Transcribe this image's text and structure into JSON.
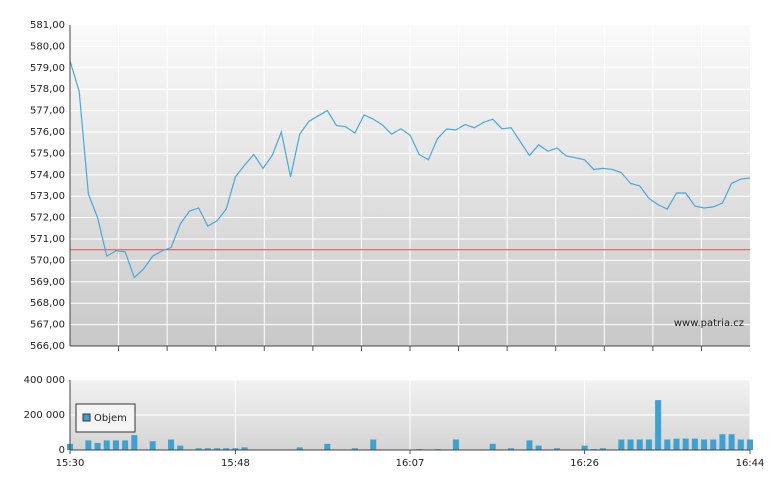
{
  "chart_data": [
    {
      "type": "line",
      "watermark": "www.patria.cz",
      "reference_line": 570.5,
      "reference_color": "#e05050",
      "x": [
        "15:30",
        "15:31",
        "15:32",
        "15:33",
        "15:34",
        "15:35",
        "15:36",
        "15:37",
        "15:38",
        "15:39",
        "15:40",
        "15:41",
        "15:42",
        "15:43",
        "15:44",
        "15:45",
        "15:46",
        "15:47",
        "15:48",
        "15:49",
        "15:50",
        "15:51",
        "15:52",
        "15:53",
        "15:54",
        "15:55",
        "15:56",
        "15:57",
        "15:58",
        "15:59",
        "16:00",
        "16:01",
        "16:02",
        "16:03",
        "16:04",
        "16:05",
        "16:06",
        "16:07",
        "16:08",
        "16:09",
        "16:10",
        "16:11",
        "16:12",
        "16:13",
        "16:14",
        "16:15",
        "16:16",
        "16:17",
        "16:18",
        "16:19",
        "16:20",
        "16:21",
        "16:22",
        "16:23",
        "16:24",
        "16:25",
        "16:26",
        "16:27",
        "16:28",
        "16:29",
        "16:30",
        "16:31",
        "16:32",
        "16:33",
        "16:34",
        "16:35",
        "16:36",
        "16:37",
        "16:38",
        "16:39",
        "16:40",
        "16:41",
        "16:42",
        "16:43",
        "16:44"
      ],
      "xlim": [
        "15:30",
        "16:44"
      ],
      "series": [
        {
          "color": "#4aa8d8",
          "values": [
            579.32,
            577.9,
            573.1,
            572.0,
            570.2,
            570.45,
            570.4,
            569.2,
            569.6,
            570.2,
            570.44,
            570.6,
            571.7,
            572.3,
            572.45,
            571.6,
            571.85,
            572.4,
            573.9,
            574.45,
            574.95,
            574.3,
            574.9,
            576.0,
            573.9,
            575.9,
            576.5,
            576.75,
            577.0,
            576.3,
            576.25,
            575.95,
            576.8,
            576.6,
            576.33,
            575.9,
            576.15,
            575.86,
            574.95,
            574.7,
            575.7,
            576.14,
            576.1,
            576.35,
            576.2,
            576.45,
            576.6,
            576.15,
            576.2,
            575.55,
            574.9,
            575.4,
            575.1,
            575.25,
            574.88,
            574.8,
            574.7,
            574.25,
            574.3,
            574.25,
            574.1,
            573.6,
            573.48,
            572.9,
            572.6,
            572.4,
            573.15,
            573.15,
            572.54,
            572.45,
            572.5,
            572.68,
            573.6,
            573.8,
            573.85
          ]
        }
      ],
      "ylim": [
        566,
        581
      ],
      "yticks": [
        {
          "value": 566,
          "label": "566,00"
        },
        {
          "value": 567,
          "label": "567,00"
        },
        {
          "value": 568,
          "label": "568,00"
        },
        {
          "value": 569,
          "label": "569,00"
        },
        {
          "value": 570,
          "label": "570,00"
        },
        {
          "value": 571,
          "label": "571,00"
        },
        {
          "value": 572,
          "label": "572,00"
        },
        {
          "value": 573,
          "label": "573,00"
        },
        {
          "value": 574,
          "label": "574,00"
        },
        {
          "value": 575,
          "label": "575,00"
        },
        {
          "value": 576,
          "label": "576,00"
        },
        {
          "value": 577,
          "label": "577,00"
        },
        {
          "value": 578,
          "label": "578,00"
        },
        {
          "value": 579,
          "label": "579,00"
        },
        {
          "value": 580,
          "label": "580,00"
        },
        {
          "value": 581,
          "label": "581,00"
        }
      ],
      "grid": true
    },
    {
      "type": "bar",
      "x": [
        "15:30",
        "15:31",
        "15:32",
        "15:33",
        "15:34",
        "15:35",
        "15:36",
        "15:37",
        "15:38",
        "15:39",
        "15:40",
        "15:41",
        "15:42",
        "15:43",
        "15:44",
        "15:45",
        "15:46",
        "15:47",
        "15:48",
        "15:49",
        "15:50",
        "15:51",
        "15:52",
        "15:53",
        "15:54",
        "15:55",
        "15:56",
        "15:57",
        "15:58",
        "15:59",
        "16:00",
        "16:01",
        "16:02",
        "16:03",
        "16:04",
        "16:05",
        "16:06",
        "16:07",
        "16:08",
        "16:09",
        "16:10",
        "16:11",
        "16:12",
        "16:13",
        "16:14",
        "16:15",
        "16:16",
        "16:17",
        "16:18",
        "16:19",
        "16:20",
        "16:21",
        "16:22",
        "16:23",
        "16:24",
        "16:25",
        "16:26",
        "16:27",
        "16:28",
        "16:29",
        "16:30",
        "16:31",
        "16:32",
        "16:33",
        "16:34",
        "16:35",
        "16:36",
        "16:37",
        "16:38",
        "16:39",
        "16:40",
        "16:41",
        "16:42",
        "16:43",
        "16:44"
      ],
      "xlim": [
        "15:30",
        "16:44"
      ],
      "xticks": [
        "15:30",
        "15:48",
        "16:07",
        "16:26",
        "16:44"
      ],
      "series": [
        {
          "name": "Objem",
          "color": "#3fa1d0",
          "values": [
            35000,
            0,
            55000,
            40000,
            55000,
            55000,
            55000,
            85000,
            0,
            50000,
            0,
            60000,
            25000,
            0,
            10000,
            10000,
            10000,
            10000,
            10000,
            15000,
            0,
            0,
            0,
            0,
            0,
            15000,
            0,
            0,
            35000,
            0,
            0,
            10000,
            0,
            60000,
            0,
            0,
            0,
            0,
            5000,
            0,
            5000,
            0,
            60000,
            0,
            0,
            0,
            35000,
            0,
            10000,
            0,
            55000,
            25000,
            0,
            10000,
            0,
            0,
            25000,
            5000,
            10000,
            0,
            60000,
            60000,
            60000,
            60000,
            285000,
            60000,
            65000,
            65000,
            65000,
            60000,
            60000,
            90000,
            90000,
            60000,
            60000
          ]
        }
      ],
      "ylim": [
        0,
        400000
      ],
      "yticks": [
        0,
        {
          "value": 200000,
          "label": "200 000"
        },
        {
          "value": 400000,
          "label": "400 000"
        }
      ],
      "grid": true
    }
  ]
}
